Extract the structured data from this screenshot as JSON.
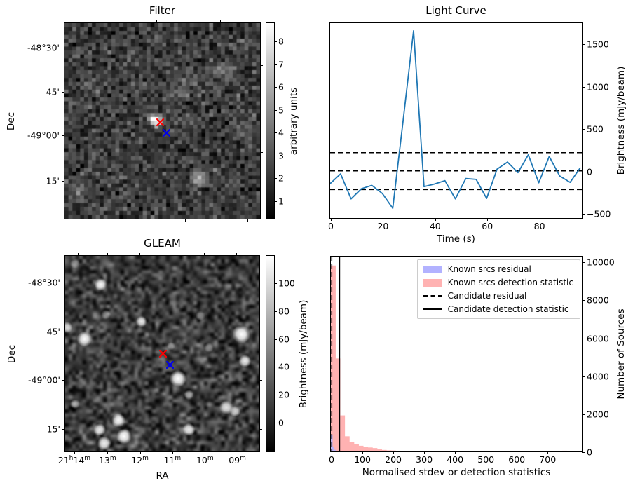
{
  "figure": {
    "background": "#ffffff",
    "text_color": "#000000"
  },
  "chart_data": [
    {
      "type": "heatmap",
      "title": "Filter",
      "ylabel": "Dec",
      "colorbar": {
        "label": "arbitrary units",
        "ticks": [
          1,
          2,
          3,
          4,
          5,
          6,
          7,
          8
        ],
        "vmin": 0.2,
        "vmax": 8.77,
        "cmap": "gray"
      },
      "yticks": [
        {
          "f": 0.1235,
          "label": "-48°30'"
        },
        {
          "f": 0.3488,
          "label": "45'"
        },
        {
          "f": 0.5704,
          "label": "-49°00'"
        },
        {
          "f": 0.8043,
          "label": "15'"
        }
      ],
      "right_ticks_f": [
        0.212,
        0.657
      ],
      "xticks_top_f": [
        0.149,
        0.465,
        0.791
      ],
      "xticks_bottom_f": [
        0.295,
        0.612,
        0.932
      ],
      "markers": [
        {
          "shape": "x",
          "color": "#ff0000",
          "fx": 0.4886,
          "fy": 0.5053
        },
        {
          "shape": "x",
          "color": "#0000ee",
          "fx": 0.5207,
          "fy": 0.5598
        }
      ],
      "noise": {
        "seed": 11,
        "cells": 50,
        "mean": 2.1,
        "sd": 0.85,
        "vmin": 0.2,
        "vmax": 8.77,
        "blobs": [
          [
            0.468,
            0.497,
            6.8,
            0.016
          ],
          [
            0.448,
            0.492,
            3.0,
            0.02
          ],
          [
            0.49,
            0.51,
            1.5,
            0.02
          ],
          [
            0.68,
            0.79,
            2.8,
            0.022
          ],
          [
            0.71,
            0.8,
            1.5,
            0.03
          ],
          [
            0.065,
            0.865,
            2.0,
            0.025
          ],
          [
            0.8,
            0.255,
            1.3,
            0.045
          ],
          [
            0.64,
            0.3,
            1.1,
            0.04
          ],
          [
            0.57,
            0.345,
            1.0,
            0.035
          ],
          [
            0.9,
            0.575,
            1.2,
            0.028
          ],
          [
            0.935,
            0.1,
            1.3,
            0.03
          ],
          [
            0.16,
            0.3,
            0.9,
            0.03
          ]
        ]
      }
    },
    {
      "type": "line",
      "title": "Light Curve",
      "xlabel": "Time (s)",
      "ylabel": "Brightness (mJy/beam)",
      "line_color": "#1f77b4",
      "x": [
        0,
        4,
        8,
        12,
        16,
        20,
        24,
        28,
        32,
        36,
        40,
        44,
        48,
        52,
        56,
        60,
        64,
        68,
        72,
        76,
        80,
        84,
        88,
        92,
        96
      ],
      "y": [
        -150,
        -35,
        -330,
        -210,
        -170,
        -265,
        -440,
        600,
        1650,
        -185,
        -155,
        -115,
        -330,
        -90,
        -100,
        -325,
        20,
        105,
        -20,
        190,
        -140,
        170,
        -60,
        -135,
        40
      ],
      "xlim": [
        0,
        96.5
      ],
      "ylim": [
        -555,
        1740
      ],
      "xticks": [
        0,
        20,
        40,
        60,
        80
      ],
      "yticks": [
        -500,
        0,
        500,
        1000,
        1500
      ],
      "threshold_lines": [
        215,
        0,
        -220
      ],
      "threshold_style": "dashed",
      "threshold_color": "#000000"
    },
    {
      "type": "heatmap",
      "title": "GLEAM",
      "xlabel": "RA",
      "ylabel": "Dec",
      "colorbar": {
        "label": "Brightness (mJy/beam)",
        "ticks": [
          0,
          20,
          40,
          60,
          80,
          100
        ],
        "vmin": -21,
        "vmax": 119,
        "cmap": "gray"
      },
      "yticks": [
        {
          "f": 0.134,
          "label": "-48°30'"
        },
        {
          "f": 0.383,
          "label": "45'"
        },
        {
          "f": 0.632,
          "label": "-49°00'"
        },
        {
          "f": 0.881,
          "label": "15'"
        }
      ],
      "xticks": [
        {
          "f": 0.043,
          "parts": [
            [
              "21",
              "h"
            ],
            [
              "14",
              "m"
            ]
          ]
        },
        {
          "f": 0.214,
          "parts": [
            [
              "13",
              "m"
            ]
          ]
        },
        {
          "f": 0.381,
          "parts": [
            [
              "12",
              "m"
            ]
          ]
        },
        {
          "f": 0.548,
          "parts": [
            [
              "11",
              "m"
            ]
          ]
        },
        {
          "f": 0.716,
          "parts": [
            [
              "10",
              "m"
            ]
          ]
        },
        {
          "f": 0.883,
          "parts": [
            [
              "09",
              "m"
            ]
          ]
        }
      ],
      "xticks_top_f": [
        0.062,
        0.214,
        0.379,
        0.546,
        0.71,
        0.877
      ],
      "markers": [
        {
          "shape": "x",
          "color": "#ff0000",
          "fx": 0.503,
          "fy": 0.4976
        },
        {
          "shape": "x",
          "color": "#0000ee",
          "fx": 0.539,
          "fy": 0.5546
        }
      ],
      "noise": {
        "seed": 5,
        "base": 0.24,
        "sd": 0.13,
        "bright_blobs": [
          [
            0.183,
            0.146,
            0.95,
            9
          ],
          [
            0.392,
            0.336,
            0.9,
            8
          ],
          [
            0.099,
            0.425,
            1.0,
            11
          ],
          [
            0.907,
            0.401,
            1.0,
            13
          ],
          [
            0.925,
            0.538,
            0.92,
            9
          ],
          [
            0.581,
            0.627,
            1.0,
            12
          ],
          [
            0.637,
            0.71,
            0.6,
            7
          ],
          [
            0.83,
            0.775,
            0.85,
            10
          ],
          [
            0.875,
            0.795,
            0.8,
            8
          ],
          [
            0.273,
            0.841,
            0.95,
            10
          ],
          [
            0.177,
            0.888,
            0.9,
            9
          ],
          [
            0.303,
            0.923,
            1.0,
            11
          ],
          [
            0.201,
            0.959,
            0.9,
            10
          ],
          [
            0.637,
            0.888,
            0.92,
            9
          ],
          [
            0.051,
            0.757,
            0.5,
            7
          ],
          [
            0.01,
            0.366,
            0.85,
            8
          ],
          [
            0.697,
            0.306,
            0.45,
            7
          ],
          [
            0.545,
            0.462,
            0.5,
            6
          ],
          [
            0.74,
            0.47,
            0.45,
            7
          ],
          [
            0.21,
            0.3,
            0.4,
            7
          ],
          [
            0.05,
            0.04,
            0.4,
            7
          ]
        ],
        "dark_blobs": [
          [
            0.1,
            0.075,
            0.45,
            11
          ],
          [
            0.42,
            0.3,
            0.35,
            9
          ],
          [
            0.54,
            0.16,
            0.35,
            10
          ],
          [
            0.66,
            0.05,
            0.35,
            9
          ],
          [
            0.25,
            0.55,
            0.3,
            9
          ],
          [
            0.05,
            0.2,
            0.35,
            9
          ],
          [
            0.76,
            0.55,
            0.3,
            8
          ],
          [
            0.48,
            0.75,
            0.3,
            9
          ],
          [
            0.94,
            0.94,
            0.35,
            10
          ],
          [
            0.3,
            0.07,
            0.35,
            9
          ]
        ]
      }
    },
    {
      "type": "bar",
      "title": "",
      "xlabel": "Normalised stdev or detection statistics",
      "ylabel": "Number of Sources",
      "xlim": [
        0,
        813
      ],
      "ylim": [
        0,
        10270
      ],
      "xticks": [
        0,
        100,
        200,
        300,
        400,
        500,
        600,
        700
      ],
      "yticks": [
        0,
        2000,
        4000,
        6000,
        8000,
        10000
      ],
      "series": [
        {
          "name": "Known srcs residual",
          "color": "#b2b2ff",
          "bin_width": 5,
          "start": 0,
          "values": [
            850,
            260,
            90,
            40,
            18,
            8
          ]
        },
        {
          "name": "Known srcs detection statistic",
          "color": "#ffb2b2",
          "bin_width": 15,
          "start": 0,
          "values": [
            9800,
            4900,
            1900,
            800,
            500,
            380,
            300,
            250,
            210,
            180,
            110,
            80,
            60,
            50,
            28,
            26,
            25,
            24,
            24,
            25,
            26,
            30,
            26,
            30,
            0,
            28,
            30,
            26,
            28,
            30,
            26,
            0,
            28,
            30,
            0,
            0,
            0,
            0,
            0,
            0,
            30,
            26,
            0,
            0,
            0,
            0,
            0,
            0,
            0,
            0,
            40,
            34,
            0,
            0
          ]
        }
      ],
      "vlines": [
        {
          "name": "Candidate residual",
          "x": 3,
          "style": "dashed",
          "color": "#000000"
        },
        {
          "name": "Candidate detection statistic",
          "x": 28,
          "style": "solid",
          "color": "#000000"
        }
      ],
      "legend": [
        {
          "label": "Known srcs residual",
          "swatch": "patch",
          "color": "#b2b2ff"
        },
        {
          "label": "Known srcs detection statistic",
          "swatch": "patch",
          "color": "#ffb2b2"
        },
        {
          "label": "Candidate residual",
          "swatch": "dashed-line",
          "color": "#000000"
        },
        {
          "label": "Candidate detection statistic",
          "swatch": "solid-line",
          "color": "#000000"
        }
      ]
    }
  ]
}
